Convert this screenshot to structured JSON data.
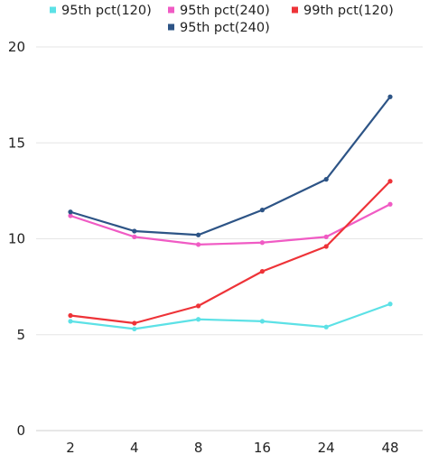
{
  "chart_data": {
    "type": "line",
    "title": "",
    "xlabel": "",
    "ylabel": "",
    "categories": [
      "2",
      "4",
      "8",
      "16",
      "24",
      "48"
    ],
    "ylim": [
      0,
      20
    ],
    "yticks": [
      0,
      5,
      10,
      15,
      20
    ],
    "grid": true,
    "legend_position": "top-center",
    "series": [
      {
        "name": "95th pct(120)",
        "color": "#5ce1e6",
        "values": [
          5.7,
          5.3,
          5.8,
          5.7,
          5.4,
          6.6
        ]
      },
      {
        "name": "95th pct(240)",
        "color": "#f05bc4",
        "values": [
          11.2,
          10.1,
          9.7,
          9.8,
          10.1,
          11.8
        ]
      },
      {
        "name": "99th pct(120)",
        "color": "#ee3338",
        "values": [
          6.0,
          5.6,
          6.5,
          8.3,
          9.6,
          13.0
        ]
      },
      {
        "name": "95th pct(240)",
        "color": "#2d5486",
        "values": [
          11.4,
          10.4,
          10.2,
          11.5,
          13.1,
          17.4
        ]
      }
    ]
  }
}
